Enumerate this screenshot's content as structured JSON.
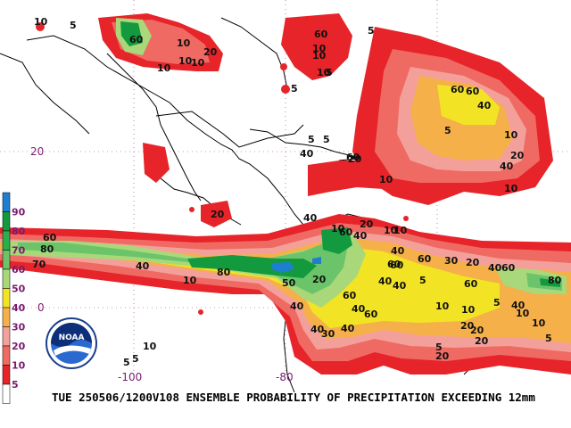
{
  "caption": "TUE 250506/1200V108  ENSEMBLE PROBABILITY OF PRECIPITATION EXCEEDING 12mm",
  "logo_text": "NOAA",
  "axes": {
    "lat_labels": [
      "20",
      "0"
    ],
    "lon_labels": [
      "-100",
      "-80"
    ]
  },
  "legend": {
    "labels": [
      "90",
      "80",
      "70",
      "60",
      "50",
      "40",
      "30",
      "20",
      "10",
      "5"
    ],
    "colors": [
      "#1e7fd0",
      "#149a3e",
      "#2aae4e",
      "#6cc46a",
      "#a8d87a",
      "#f2e424",
      "#f5b04a",
      "#f4a09a",
      "#f06a64",
      "#e6242a",
      "#ffffff"
    ]
  },
  "contour_labels": [
    "10",
    "5",
    "60",
    "10",
    "10",
    "10",
    "10",
    "60",
    "10",
    "5",
    "10",
    "20",
    "5",
    "5",
    "10",
    "60",
    "60",
    "40",
    "10",
    "5",
    "10",
    "20",
    "5",
    "40",
    "60",
    "40",
    "5",
    "20",
    "10",
    "40",
    "60",
    "80",
    "40",
    "70",
    "10",
    "20",
    "10",
    "60",
    "40",
    "20",
    "10",
    "60",
    "40",
    "10",
    "20",
    "40",
    "30",
    "20",
    "60",
    "5",
    "80",
    "50",
    "40",
    "60",
    "40",
    "40",
    "60",
    "60",
    "10",
    "5",
    "60",
    "40",
    "30",
    "40",
    "80",
    "10",
    "20",
    "40",
    "60",
    "10",
    "20",
    "20",
    "5",
    "5",
    "10",
    "5",
    "20",
    "5",
    "10",
    "40"
  ]
}
